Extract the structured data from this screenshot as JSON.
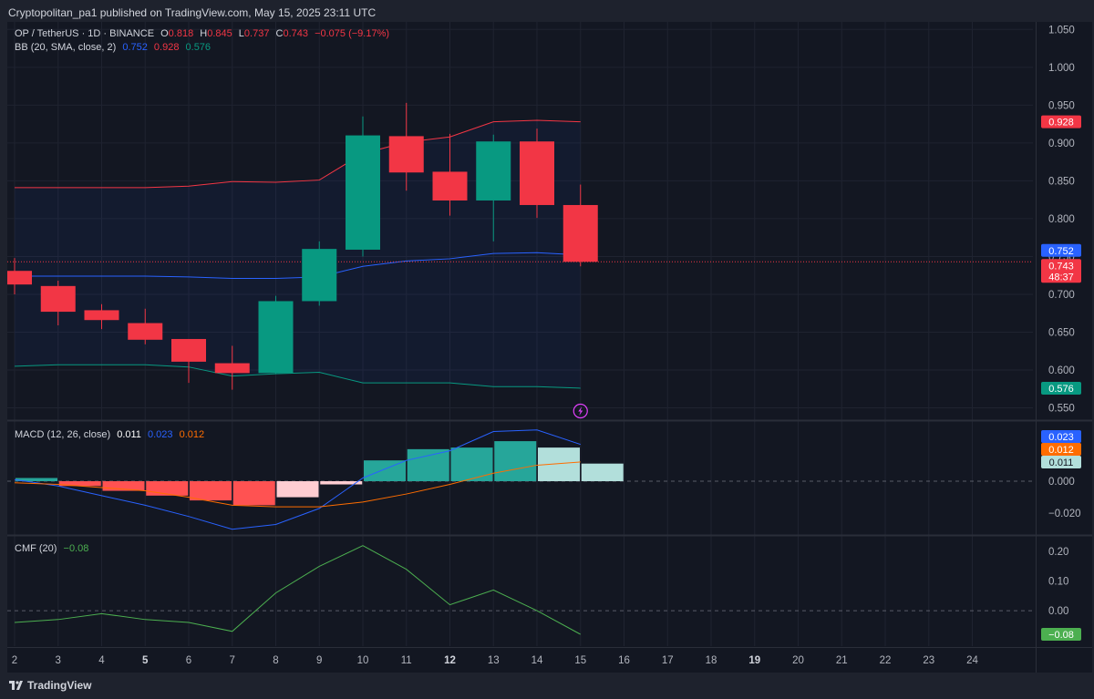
{
  "header": {
    "attribution": "Cryptopolitan_pa1 published on TradingView.com, May 15, 2025 23:11 UTC"
  },
  "footer": {
    "brand": "TradingView"
  },
  "legend": {
    "symbol": "OP / TetherUS · 1D · BINANCE",
    "o_label": "O",
    "o": "0.818",
    "h_label": "H",
    "h": "0.845",
    "l_label": "L",
    "l": "0.737",
    "c_label": "C",
    "c": "0.743",
    "change": "−0.075 (−9.17%)",
    "bb_label": "BB (20, SMA, close, 2)",
    "bb_basis": "0.752",
    "bb_upper": "0.928",
    "bb_lower": "0.576",
    "macd_label": "MACD (12, 26, close)",
    "macd_hist": "0.011",
    "macd_line": "0.023",
    "macd_signal": "0.012",
    "cmf_label": "CMF (20)",
    "cmf_value": "−0.08"
  },
  "colors": {
    "up": "#089981",
    "down": "#f23645",
    "bb_basis": "#2962ff",
    "bb_upper": "#f23645",
    "bb_lower": "#089981",
    "macd": "#2962ff",
    "signal": "#ff6d00",
    "cmf": "#4caf50",
    "hist_up_strong": "#26a69a",
    "hist_up_weak": "#b2dfdb",
    "hist_down_strong": "#ff5252",
    "hist_down_weak": "#ffcdd2"
  },
  "chart_data": [
    {
      "type": "candlestick",
      "title": "OP / TetherUS · 1D · BINANCE",
      "x": [
        "2",
        "3",
        "4",
        "5",
        "6",
        "7",
        "8",
        "9",
        "10",
        "11",
        "12",
        "13",
        "14",
        "15",
        "16",
        "17",
        "18",
        "19",
        "20",
        "21",
        "22",
        "23",
        "24"
      ],
      "x_bold": [
        "5",
        "12",
        "19"
      ],
      "candles": [
        {
          "x": "2",
          "o": 0.731,
          "h": 0.748,
          "l": 0.7,
          "c": 0.713
        },
        {
          "x": "3",
          "o": 0.711,
          "h": 0.718,
          "l": 0.659,
          "c": 0.677
        },
        {
          "x": "4",
          "o": 0.679,
          "h": 0.687,
          "l": 0.654,
          "c": 0.666
        },
        {
          "x": "5",
          "o": 0.662,
          "h": 0.681,
          "l": 0.634,
          "c": 0.64
        },
        {
          "x": "6",
          "o": 0.641,
          "h": 0.641,
          "l": 0.583,
          "c": 0.611
        },
        {
          "x": "7",
          "o": 0.609,
          "h": 0.632,
          "l": 0.574,
          "c": 0.596
        },
        {
          "x": "8",
          "o": 0.596,
          "h": 0.698,
          "l": 0.595,
          "c": 0.691
        },
        {
          "x": "9",
          "o": 0.691,
          "h": 0.77,
          "l": 0.685,
          "c": 0.76
        },
        {
          "x": "10",
          "o": 0.759,
          "h": 0.935,
          "l": 0.75,
          "c": 0.91
        },
        {
          "x": "11",
          "o": 0.909,
          "h": 0.953,
          "l": 0.837,
          "c": 0.861
        },
        {
          "x": "12",
          "o": 0.862,
          "h": 0.912,
          "l": 0.804,
          "c": 0.824
        },
        {
          "x": "13",
          "o": 0.824,
          "h": 0.911,
          "l": 0.77,
          "c": 0.902
        },
        {
          "x": "14",
          "o": 0.902,
          "h": 0.919,
          "l": 0.801,
          "c": 0.818
        },
        {
          "x": "15",
          "o": 0.818,
          "h": 0.845,
          "l": 0.737,
          "c": 0.743
        }
      ],
      "bollinger": {
        "basis": [
          0.724,
          0.724,
          0.724,
          0.724,
          0.723,
          0.721,
          0.721,
          0.723,
          0.737,
          0.744,
          0.747,
          0.754,
          0.755,
          0.752
        ],
        "upper": [
          0.841,
          0.841,
          0.841,
          0.841,
          0.843,
          0.849,
          0.848,
          0.851,
          0.886,
          0.901,
          0.908,
          0.928,
          0.93,
          0.928
        ],
        "lower": [
          0.605,
          0.607,
          0.607,
          0.607,
          0.604,
          0.592,
          0.595,
          0.597,
          0.583,
          0.583,
          0.583,
          0.578,
          0.578,
          0.576
        ]
      },
      "ylim": [
        0.535,
        1.06
      ],
      "y_ticks": [
        "0.550",
        "0.600",
        "0.650",
        "0.700",
        "0.750",
        "0.800",
        "0.850",
        "0.900",
        "0.950",
        "1.000",
        "1.050"
      ],
      "price_labels": [
        {
          "label": "0.928",
          "value": 0.928,
          "color": "#f23645"
        },
        {
          "label": "0.752",
          "value": 0.752,
          "color": "#2962ff"
        },
        {
          "label": "0.743",
          "value": 0.743,
          "color": "#f23645"
        },
        {
          "label": "48:37",
          "color": "#f23645"
        },
        {
          "label": "0.576",
          "value": 0.576,
          "color": "#089981"
        }
      ]
    },
    {
      "type": "bar",
      "title": "MACD (12, 26, close)",
      "x": [
        "2",
        "3",
        "4",
        "5",
        "6",
        "7",
        "8",
        "9",
        "10",
        "11",
        "12",
        "13",
        "14",
        "15"
      ],
      "histogram": [
        0.002,
        -0.003,
        -0.006,
        -0.009,
        -0.012,
        -0.015,
        -0.01,
        -0.002,
        0.013,
        0.02,
        0.021,
        0.025,
        0.021,
        0.011
      ],
      "macd": [
        0.001,
        -0.003,
        -0.009,
        -0.015,
        -0.022,
        -0.03,
        -0.027,
        -0.017,
        0.002,
        0.013,
        0.019,
        0.031,
        0.032,
        0.023
      ],
      "signal": [
        -0.001,
        -0.002,
        -0.004,
        -0.006,
        -0.01,
        -0.015,
        -0.016,
        -0.016,
        -0.013,
        -0.008,
        -0.002,
        0.005,
        0.01,
        0.012
      ],
      "ylim": [
        -0.033,
        0.037
      ],
      "y_ticks": [
        "−0.020",
        "0.000"
      ],
      "value_labels": [
        {
          "label": "0.023",
          "value": 0.023,
          "color": "#2962ff"
        },
        {
          "label": "0.012",
          "value": 0.012,
          "color": "#ff6d00"
        },
        {
          "label": "0.011",
          "value": 0.011,
          "color": "#b2dfdb"
        }
      ]
    },
    {
      "type": "line",
      "title": "CMF (20)",
      "x": [
        "2",
        "3",
        "4",
        "5",
        "6",
        "7",
        "8",
        "9",
        "10",
        "11",
        "12",
        "13",
        "14",
        "15"
      ],
      "values": [
        -0.04,
        -0.03,
        -0.01,
        -0.03,
        -0.04,
        -0.07,
        0.06,
        0.15,
        0.22,
        0.14,
        0.02,
        0.07,
        -0.0,
        -0.08
      ],
      "ylim": [
        -0.12,
        0.25
      ],
      "y_ticks": [
        "0.00",
        "0.10",
        "0.20"
      ],
      "value_labels": [
        {
          "label": "−0.08",
          "value": -0.08,
          "color": "#4caf50"
        }
      ]
    }
  ]
}
